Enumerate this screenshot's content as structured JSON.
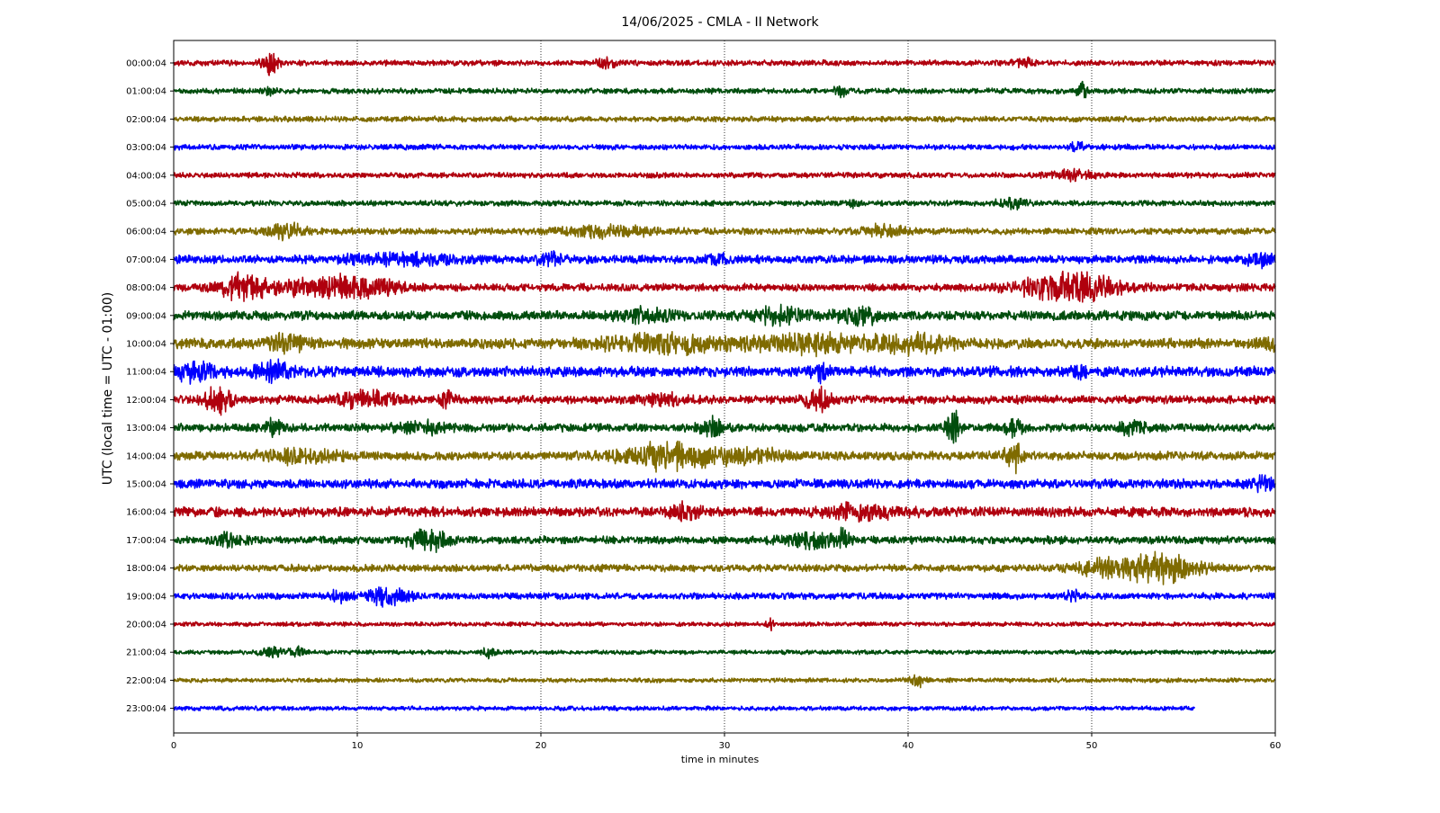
{
  "chart_data": {
    "type": "line",
    "title": "14/06/2025 - CMLA - II Network",
    "xlabel": "time in minutes",
    "ylabel": "UTC (local time = UTC - 01:00)",
    "xlim": [
      0,
      60
    ],
    "x_ticks": [
      "0",
      "10",
      "20",
      "30",
      "40",
      "50",
      "60"
    ],
    "grid": "vertical dotted at 10-minute ticks",
    "colors": [
      "#b0000e",
      "#004d0d",
      "#7f6b00",
      "#0000ff"
    ],
    "rows": [
      {
        "label": "00:00:04",
        "end_minute": 60,
        "amplitude": 1.0,
        "events": [
          {
            "t": 5.3,
            "amp": 5.5,
            "dur": 0.4
          },
          {
            "t": 23.6,
            "amp": 1.6,
            "dur": 0.5
          },
          {
            "t": 46.3,
            "amp": 1.5,
            "dur": 0.5
          }
        ]
      },
      {
        "label": "01:00:04",
        "end_minute": 60,
        "amplitude": 1.0,
        "events": [
          {
            "t": 5.2,
            "amp": 1.8,
            "dur": 0.3
          },
          {
            "t": 36.3,
            "amp": 1.8,
            "dur": 0.4
          },
          {
            "t": 49.5,
            "amp": 2.8,
            "dur": 0.3
          }
        ]
      },
      {
        "label": "02:00:04",
        "end_minute": 60,
        "amplitude": 1.0,
        "events": []
      },
      {
        "label": "03:00:04",
        "end_minute": 60,
        "amplitude": 1.0,
        "events": [
          {
            "t": 49.2,
            "amp": 2.0,
            "dur": 0.3
          }
        ]
      },
      {
        "label": "04:00:04",
        "end_minute": 60,
        "amplitude": 1.0,
        "events": [
          {
            "t": 48.8,
            "amp": 1.8,
            "dur": 1.2
          }
        ]
      },
      {
        "label": "05:00:04",
        "end_minute": 60,
        "amplitude": 1.0,
        "events": [
          {
            "t": 45.7,
            "amp": 1.7,
            "dur": 0.8
          },
          {
            "t": 37.1,
            "amp": 1.4,
            "dur": 0.3
          }
        ]
      },
      {
        "label": "06:00:04",
        "end_minute": 60,
        "amplitude": 1.2,
        "events": [
          {
            "t": 6.2,
            "amp": 2.3,
            "dur": 1.0
          },
          {
            "t": 23.5,
            "amp": 1.7,
            "dur": 2.5
          },
          {
            "t": 38.7,
            "amp": 2.0,
            "dur": 1.3
          }
        ]
      },
      {
        "label": "07:00:04",
        "end_minute": 60,
        "amplitude": 1.5,
        "events": [
          {
            "t": 12.5,
            "amp": 1.7,
            "dur": 3.0
          },
          {
            "t": 20.6,
            "amp": 2.0,
            "dur": 0.7
          },
          {
            "t": 29.5,
            "amp": 1.8,
            "dur": 0.6
          },
          {
            "t": 59.3,
            "amp": 2.2,
            "dur": 0.9
          }
        ]
      },
      {
        "label": "08:00:04",
        "end_minute": 60,
        "amplitude": 1.4,
        "events": [
          {
            "t": 3.8,
            "amp": 4.5,
            "dur": 1.4
          },
          {
            "t": 8.4,
            "amp": 3.6,
            "dur": 2.4
          },
          {
            "t": 11.2,
            "amp": 2.4,
            "dur": 1.1
          },
          {
            "t": 48.8,
            "amp": 5.0,
            "dur": 2.6
          }
        ]
      },
      {
        "label": "09:00:04",
        "end_minute": 60,
        "amplitude": 1.7,
        "events": [
          {
            "t": 33.0,
            "amp": 2.3,
            "dur": 1.5
          },
          {
            "t": 37.3,
            "amp": 2.8,
            "dur": 1.1
          },
          {
            "t": 25.5,
            "amp": 1.8,
            "dur": 1.8
          }
        ]
      },
      {
        "label": "10:00:04",
        "end_minute": 60,
        "amplitude": 1.9,
        "events": [
          {
            "t": 6.3,
            "amp": 2.4,
            "dur": 1.0
          },
          {
            "t": 27.0,
            "amp": 2.6,
            "dur": 3.5
          },
          {
            "t": 35.0,
            "amp": 2.5,
            "dur": 3.5
          },
          {
            "t": 40.5,
            "amp": 2.4,
            "dur": 2.0
          },
          {
            "t": 59.7,
            "amp": 3.0,
            "dur": 0.5
          }
        ]
      },
      {
        "label": "11:00:04",
        "end_minute": 60,
        "amplitude": 1.9,
        "events": [
          {
            "t": 1.2,
            "amp": 2.6,
            "dur": 1.2
          },
          {
            "t": 5.6,
            "amp": 3.1,
            "dur": 1.1
          },
          {
            "t": 35.2,
            "amp": 2.4,
            "dur": 0.4
          },
          {
            "t": 49.3,
            "amp": 1.8,
            "dur": 0.4
          }
        ]
      },
      {
        "label": "12:00:04",
        "end_minute": 60,
        "amplitude": 1.5,
        "events": [
          {
            "t": 2.4,
            "amp": 4.8,
            "dur": 0.7
          },
          {
            "t": 10.5,
            "amp": 2.6,
            "dur": 1.6
          },
          {
            "t": 14.8,
            "amp": 2.6,
            "dur": 0.4
          },
          {
            "t": 35.1,
            "amp": 3.6,
            "dur": 0.7
          },
          {
            "t": 26.5,
            "amp": 1.8,
            "dur": 1.5
          }
        ]
      },
      {
        "label": "13:00:04",
        "end_minute": 60,
        "amplitude": 1.5,
        "events": [
          {
            "t": 5.4,
            "amp": 2.3,
            "dur": 0.5
          },
          {
            "t": 13.5,
            "amp": 1.8,
            "dur": 1.5
          },
          {
            "t": 29.3,
            "amp": 3.2,
            "dur": 0.7
          },
          {
            "t": 42.5,
            "amp": 5.5,
            "dur": 0.4
          },
          {
            "t": 45.8,
            "amp": 3.0,
            "dur": 0.5
          },
          {
            "t": 52.2,
            "amp": 2.2,
            "dur": 0.8
          }
        ]
      },
      {
        "label": "14:00:04",
        "end_minute": 60,
        "amplitude": 1.6,
        "events": [
          {
            "t": 7.0,
            "amp": 2.2,
            "dur": 2.0
          },
          {
            "t": 27.0,
            "amp": 4.5,
            "dur": 2.6
          },
          {
            "t": 31.5,
            "amp": 2.5,
            "dur": 1.5
          },
          {
            "t": 45.8,
            "amp": 4.8,
            "dur": 0.5
          }
        ]
      },
      {
        "label": "15:00:04",
        "end_minute": 60,
        "amplitude": 1.7,
        "events": [
          {
            "t": 59.3,
            "amp": 2.0,
            "dur": 0.6
          }
        ]
      },
      {
        "label": "16:00:04",
        "end_minute": 60,
        "amplitude": 1.8,
        "events": [
          {
            "t": 27.8,
            "amp": 2.5,
            "dur": 0.8
          },
          {
            "t": 37.5,
            "amp": 2.2,
            "dur": 2.0
          }
        ]
      },
      {
        "label": "17:00:04",
        "end_minute": 60,
        "amplitude": 1.4,
        "events": [
          {
            "t": 3.0,
            "amp": 1.8,
            "dur": 0.8
          },
          {
            "t": 13.8,
            "amp": 3.8,
            "dur": 1.0
          },
          {
            "t": 34.8,
            "amp": 2.4,
            "dur": 1.6
          },
          {
            "t": 36.5,
            "amp": 3.0,
            "dur": 0.3
          }
        ]
      },
      {
        "label": "18:00:04",
        "end_minute": 60,
        "amplitude": 1.3,
        "events": [
          {
            "t": 51.0,
            "amp": 2.6,
            "dur": 2.0
          },
          {
            "t": 54.0,
            "amp": 5.0,
            "dur": 1.8
          }
        ]
      },
      {
        "label": "19:00:04",
        "end_minute": 60,
        "amplitude": 1.2,
        "events": [
          {
            "t": 8.9,
            "amp": 2.0,
            "dur": 0.6
          },
          {
            "t": 11.7,
            "amp": 3.2,
            "dur": 1.1
          },
          {
            "t": 49.0,
            "amp": 1.5,
            "dur": 0.4
          }
        ]
      },
      {
        "label": "20:00:04",
        "end_minute": 60,
        "amplitude": 0.8,
        "events": [
          {
            "t": 32.5,
            "amp": 1.8,
            "dur": 0.2
          }
        ]
      },
      {
        "label": "21:00:04",
        "end_minute": 60,
        "amplitude": 0.8,
        "events": [
          {
            "t": 5.3,
            "amp": 1.7,
            "dur": 0.6
          },
          {
            "t": 6.7,
            "amp": 1.6,
            "dur": 0.4
          },
          {
            "t": 17.2,
            "amp": 2.4,
            "dur": 0.3
          }
        ]
      },
      {
        "label": "22:00:04",
        "end_minute": 60,
        "amplitude": 0.8,
        "events": [
          {
            "t": 40.5,
            "amp": 2.2,
            "dur": 0.5
          }
        ]
      },
      {
        "label": "23:00:04",
        "end_minute": 55.6,
        "amplitude": 0.8,
        "events": []
      }
    ]
  }
}
